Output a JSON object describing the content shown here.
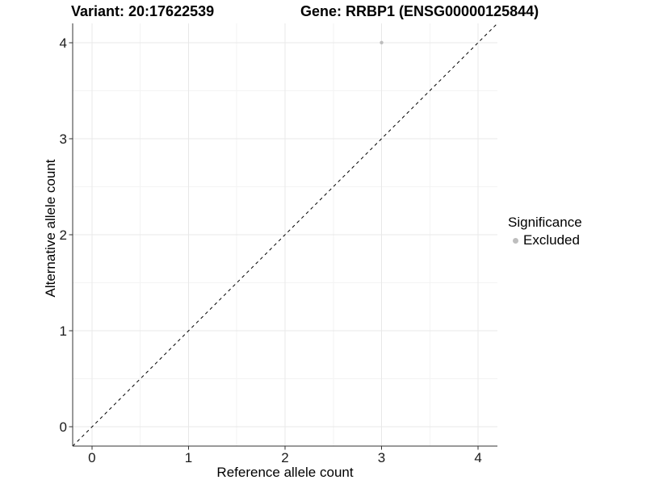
{
  "titles": {
    "variant": "Variant: 20:17622539",
    "gene": "Gene: RRBP1 (ENSG00000125844)"
  },
  "chart_data": {
    "type": "scatter",
    "title": "Variant: 20:17622539    Gene: RRBP1 (ENSG00000125844)",
    "xlabel": "Reference allele count",
    "ylabel": "Alternative allele count",
    "xlim": [
      -0.2,
      4.2
    ],
    "ylim": [
      -0.2,
      4.2
    ],
    "xticks": [
      0,
      1,
      2,
      3,
      4
    ],
    "yticks": [
      0,
      1,
      2,
      3,
      4
    ],
    "minor_gridlines_at": [
      0.5,
      1.5,
      2.5,
      3.5
    ],
    "grid": true,
    "series": [
      {
        "name": "Excluded",
        "color": "#bebebe",
        "point_radius": 2.2,
        "points": [
          {
            "x": 3,
            "y": 4,
            "significance": "Excluded"
          }
        ]
      }
    ],
    "reference_line": {
      "type": "identity",
      "style": "dashed",
      "color": "#000000",
      "from": [
        -0.2,
        -0.2
      ],
      "to": [
        4.2,
        4.2
      ]
    },
    "legend": {
      "title": "Significance",
      "position": "right",
      "entries": [
        {
          "label": "Excluded",
          "color": "#bebebe"
        }
      ]
    }
  },
  "colors": {
    "background": "#ffffff",
    "grid_major": "#e8e8e8",
    "grid_minor": "#f3f3f3",
    "axis_line": "#333333",
    "tick": "#333333",
    "tick_label": "#1a1a1a",
    "text": "#000000",
    "point": "#bebebe",
    "reference_line": "#000000"
  }
}
